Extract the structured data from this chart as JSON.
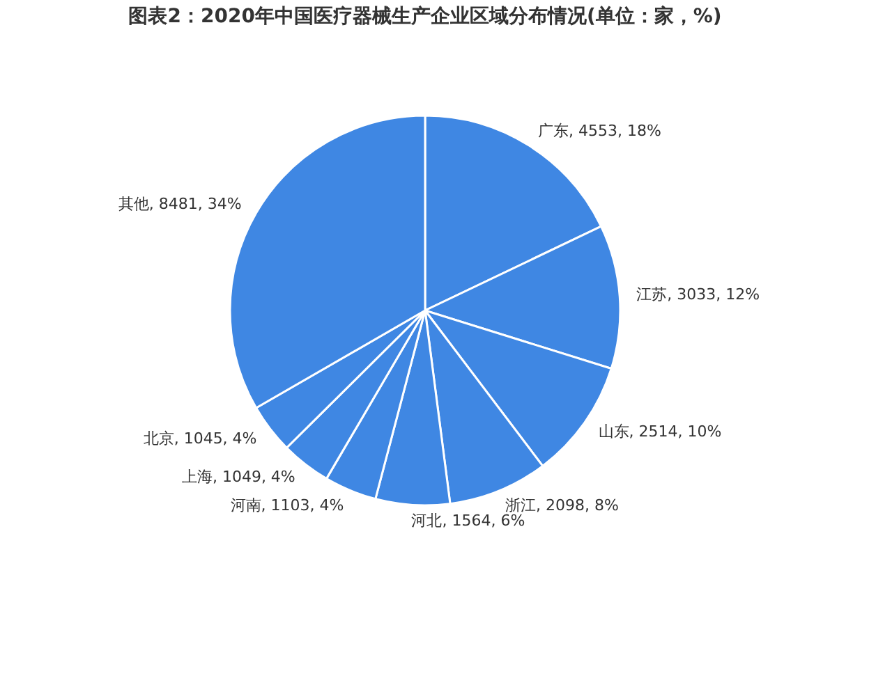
{
  "chart_data": {
    "type": "pie",
    "title": "图表2：2020年中国医疗器械生产企业区域分布情况(单位：家，%)",
    "categories": [
      "广东",
      "江苏",
      "山东",
      "浙江",
      "河北",
      "河南",
      "上海",
      "北京",
      "其他"
    ],
    "values": [
      4553,
      3033,
      2514,
      2098,
      1564,
      1103,
      1049,
      1045,
      8481
    ],
    "value_labels": [
      "4553, 18%",
      "3033, 12%",
      "2514, 10%",
      "2098, 8%",
      "1564, 6%",
      "1103, 4%",
      "1049, 4%",
      "1045, 4%",
      "8481, 34%"
    ],
    "colors": [
      "#3f87e3",
      "#3f87e3",
      "#3f87e3",
      "#3f87e3",
      "#3f87e3",
      "#3f87e3",
      "#3f87e3",
      "#3f87e3",
      "#3f87e3"
    ]
  }
}
